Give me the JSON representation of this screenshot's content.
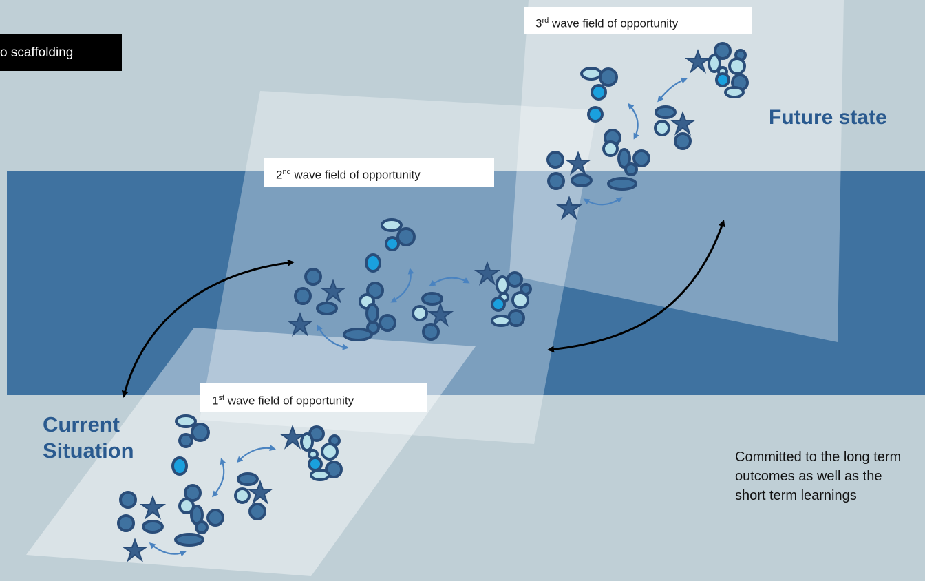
{
  "labels": {
    "tag": "o scaffolding",
    "wave3_num": "3",
    "wave3_sup": "rd",
    "wave3_text": " wave field of opportunity",
    "wave2_num": "2",
    "wave2_sup": "nd",
    "wave2_text": " wave field of opportunity",
    "wave1_num": "1",
    "wave1_sup": "st",
    "wave1_text": " wave field of opportunity",
    "future_state": "Future state",
    "current_line1": "Current",
    "current_line2": "Situation",
    "note": "Committed to the long term outcomes as well as the short term learnings"
  },
  "colors": {
    "background": "#bfcfd6",
    "band": "#3f72a0",
    "title_blue": "#2a5a8f",
    "shape_fill": "#3f72a0",
    "shape_stroke": "#2a4d79",
    "light_fill": "#b7e0ea",
    "cyan_fill": "#1aa0de",
    "arrow_blue": "#4a83c0",
    "star_fill": "#385f8c"
  },
  "icons": [
    "circle-shape",
    "ellipse-shape",
    "star-shape",
    "double-arrow-icon",
    "curved-arrow-icon"
  ]
}
